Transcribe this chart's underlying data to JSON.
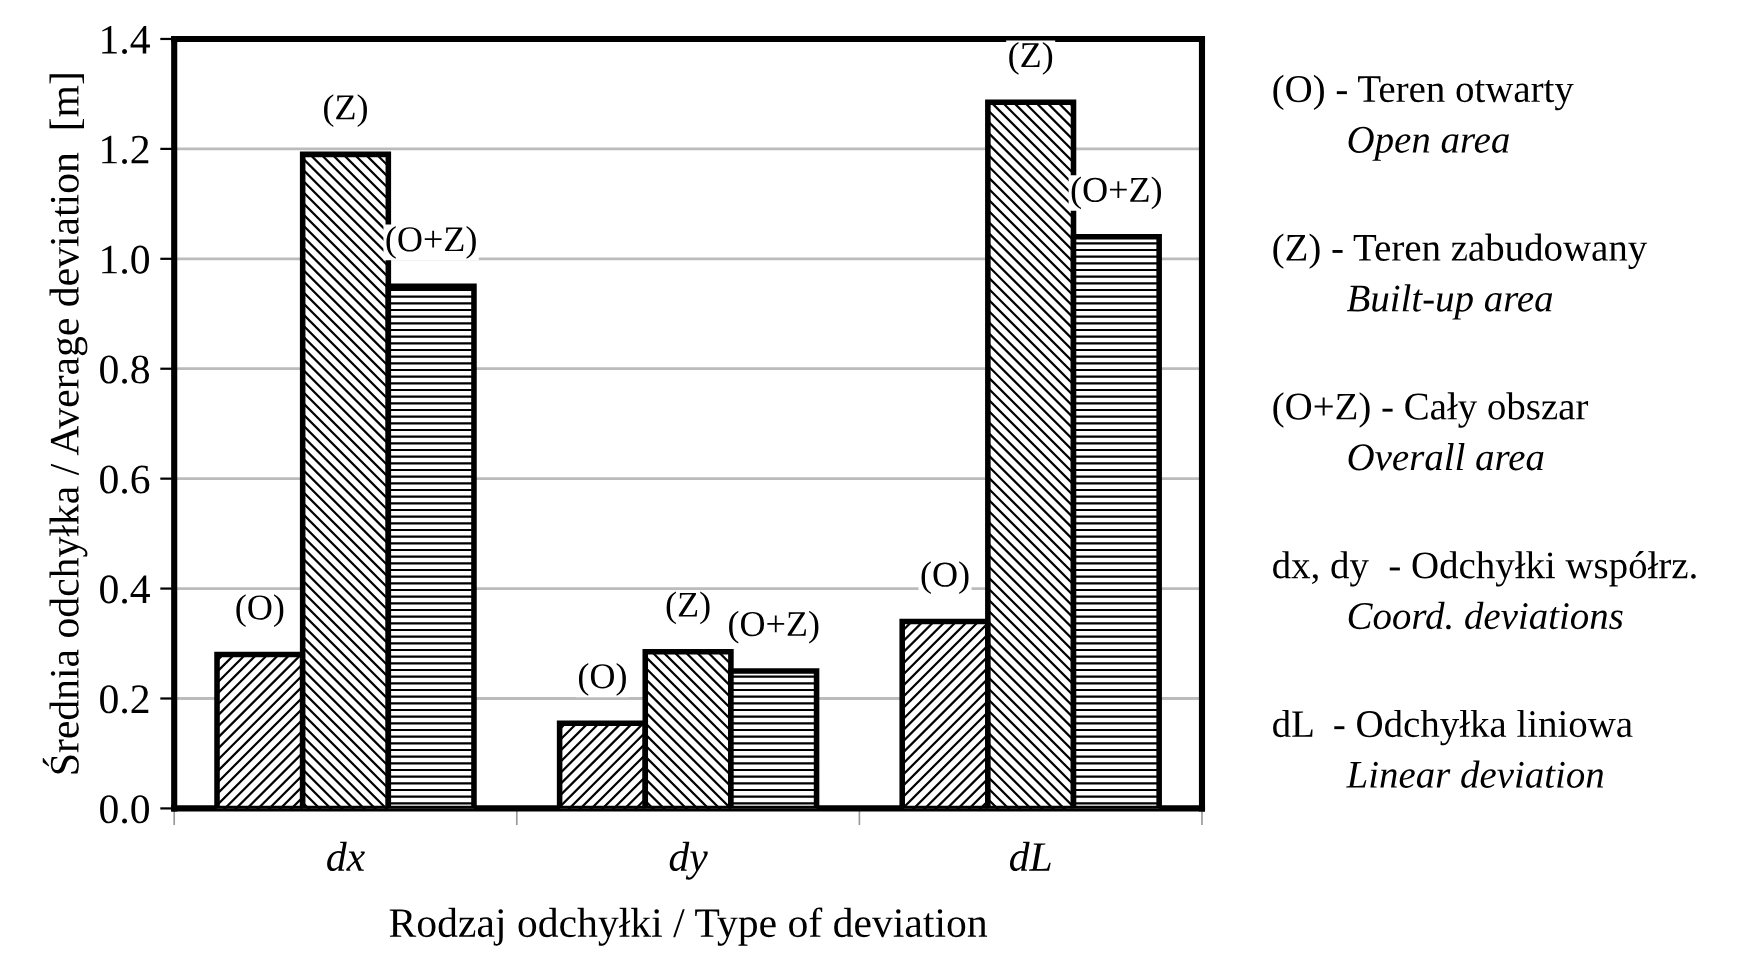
{
  "chart_data": {
    "type": "bar",
    "xlabel": "Rodzaj odchyłki / Type of deviation",
    "ylabel": "Średnia odchyłka / Average deviation  [m]",
    "categories": [
      "dx",
      "dy",
      "dL"
    ],
    "series": [
      {
        "name": "(O)",
        "color": "#000000",
        "values": [
          0.28,
          0.155,
          0.34
        ]
      },
      {
        "name": "(Z)",
        "color": "#000000",
        "values": [
          1.19,
          0.285,
          1.285
        ]
      },
      {
        "name": "(O+Z)",
        "color": "#000000",
        "values": [
          0.95,
          0.25,
          1.04
        ]
      }
    ],
    "ylim": [
      0,
      1.4
    ],
    "yticks": [
      {
        "value": 0,
        "label": "0.0"
      },
      0.2,
      0.4,
      0.6,
      0.8,
      {
        "value": 1,
        "label": "1.0"
      },
      1.2,
      1.4
    ],
    "grid": "y",
    "annotations": [
      "(O) - Teren otwarty",
      "Open area",
      "(Z) - Teren zabudowany",
      "Built-up area",
      "(O+Z) - Cały obszar",
      "Overall area",
      "dx, dy  - Odchyłki współrz.",
      "Coord. deviations",
      "dL  - Odchyłka liniowa",
      "Linear deviation"
    ]
  }
}
